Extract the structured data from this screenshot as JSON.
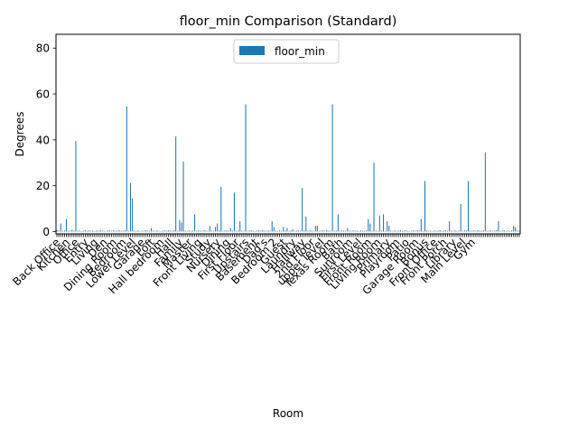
{
  "chart_data": {
    "type": "bar",
    "title": "floor_min Comparison (Standard)",
    "xlabel": "Room",
    "ylabel": "Degrees",
    "ylim": [
      -1,
      86
    ],
    "y_ticks": [
      0,
      20,
      40,
      60,
      80
    ],
    "grid": false,
    "legend": {
      "placement": "top-center",
      "entries": [
        "floor_min"
      ]
    },
    "bar_color": "#1f77b4",
    "series": [
      {
        "name": "floor_min",
        "values": [
          0.6,
          0.4,
          3.5,
          0.3,
          0.5,
          5.5,
          0.4,
          0.3,
          0.8,
          0.4,
          39.5,
          0.3,
          0.5,
          0.2,
          0.4,
          0.6,
          0.3,
          0.5,
          0.3,
          0.4,
          0.2,
          0.5,
          0.3,
          0.6,
          0.4,
          0.3,
          0.2,
          0.5,
          0.4,
          0.3,
          0.5,
          0.3,
          0.4,
          0.6,
          0.3,
          0.4,
          0.5,
          54.5,
          0.3,
          21.0,
          14.5,
          0.4,
          0.3,
          0.5,
          0.2,
          0.4,
          0.3,
          0.6,
          0.4,
          0.3,
          1.5,
          0.4,
          0.3,
          0.5,
          0.3,
          0.2,
          0.4,
          0.5,
          0.3,
          0.6,
          0.4,
          0.3,
          0.5,
          41.5,
          0.3,
          5.0,
          4.0,
          30.5,
          0.4,
          0.3,
          0.5,
          0.3,
          0.4,
          7.5,
          0.3,
          0.5,
          0.4,
          0.3,
          0.6,
          0.4,
          0.3,
          2.5,
          0.4,
          0.3,
          2.0,
          3.5,
          0.5,
          19.5,
          0.3,
          0.4,
          0.5,
          0.3,
          1.5,
          0.4,
          17.0,
          0.3,
          0.5,
          4.5,
          0.4,
          0.3,
          55.5,
          0.3,
          0.4,
          0.5,
          0.3,
          0.2,
          0.4,
          0.5,
          0.3,
          0.6,
          0.4,
          0.3,
          0.5,
          0.3,
          4.5,
          2.0,
          0.4,
          0.3,
          0.5,
          0.3,
          2.0,
          0.4,
          1.5,
          0.3,
          0.5,
          1.0,
          0.3,
          0.4,
          0.6,
          0.3,
          19.0,
          0.4,
          6.5,
          0.3,
          0.5,
          0.4,
          0.3,
          2.5,
          2.5,
          0.3,
          0.4,
          0.5,
          0.3,
          0.6,
          0.4,
          0.3,
          55.5,
          0.3,
          0.4,
          7.5,
          0.3,
          0.5,
          0.4,
          0.3,
          1.5,
          0.4,
          0.3,
          0.5,
          0.3,
          0.4,
          0.2,
          0.5,
          0.3,
          0.4,
          0.5,
          5.5,
          3.5,
          0.3,
          30.0,
          0.4,
          0.3,
          7.0,
          0.5,
          7.5,
          0.3,
          4.5,
          2.5,
          0.4,
          0.3,
          0.5,
          0.3,
          0.4,
          0.6,
          0.3,
          0.4,
          0.5,
          0.3,
          0.2,
          0.4,
          0.5,
          0.3,
          0.6,
          0.4,
          5.5,
          0.3,
          22.0,
          0.5,
          0.3,
          0.4,
          0.2,
          0.5,
          0.3,
          0.4,
          0.6,
          0.3,
          0.4,
          0.5,
          0.3,
          4.5,
          0.4,
          0.3,
          0.5,
          0.3,
          0.4,
          12.0,
          0.3,
          0.5,
          0.4,
          22.0,
          0.3,
          0.4,
          0.5,
          0.3,
          0.6,
          0.4,
          0.3,
          0.5,
          34.5,
          0.3,
          0.4,
          0.5,
          0.3,
          0.4,
          0.6,
          4.5,
          0.3,
          0.4,
          0.5,
          0.3,
          0.4,
          0.3,
          0.5,
          2.5,
          2.0,
          0.4,
          0.3
        ]
      }
    ],
    "visible_category_labels": [
      "Back Office",
      "Kitchen",
      "Office",
      "Entry",
      "Living",
      "Den",
      "Dining Room",
      "Bedroom",
      "Lower Level",
      "Garage",
      "Loft",
      "Hall bedroom",
      "Hall",
      "Family",
      "Master",
      "Front Living",
      "Study",
      "Nursery",
      "Dining",
      "First Floor",
      "Upstairs",
      "Basement",
      "Dad's",
      "Bedroom 2",
      "Guest",
      "Laundry",
      "Hallway",
      "2nd Floor",
      "upper level",
      "Texas Room",
      "Bath",
      "Sunroom",
      "First Level",
      "Front Room",
      "Living Room",
      "Primary",
      "Playroom",
      "Patio",
      "Garage Room",
      "Bonus",
      "Front Office",
      "Front Porch",
      "Library",
      "Main Level",
      "Gym"
    ]
  }
}
